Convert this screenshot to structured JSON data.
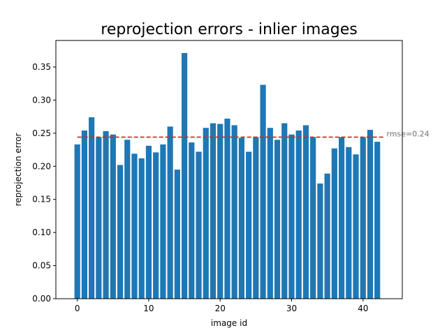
{
  "chart_data": {
    "type": "bar",
    "title": "reprojection errors - inlier images",
    "xlabel": "image id",
    "ylabel": "reprojection error",
    "xlim": [
      -3,
      45.5
    ],
    "ylim": [
      0,
      0.39
    ],
    "xticks": [
      0,
      10,
      20,
      30,
      40
    ],
    "xtick_labels": [
      "0",
      "10",
      "20",
      "30",
      "40"
    ],
    "yticks": [
      0,
      0.05,
      0.1,
      0.15,
      0.2,
      0.25,
      0.3,
      0.35
    ],
    "ytick_labels": [
      "0.00",
      "0.05",
      "0.10",
      "0.15",
      "0.20",
      "0.25",
      "0.30",
      "0.35"
    ],
    "grid": false,
    "bar_color": "#1f77b4",
    "x": [
      0,
      1,
      2,
      3,
      4,
      5,
      6,
      7,
      8,
      9,
      10,
      11,
      12,
      13,
      14,
      15,
      16,
      17,
      18,
      19,
      20,
      21,
      22,
      23,
      24,
      25,
      26,
      27,
      28,
      29,
      30,
      31,
      32,
      33,
      34,
      35,
      36,
      37,
      38,
      39,
      40,
      41,
      42
    ],
    "values": [
      0.233,
      0.254,
      0.274,
      0.244,
      0.253,
      0.248,
      0.202,
      0.24,
      0.219,
      0.212,
      0.231,
      0.221,
      0.233,
      0.26,
      0.195,
      0.371,
      0.236,
      0.222,
      0.258,
      0.265,
      0.264,
      0.272,
      0.262,
      0.243,
      0.222,
      0.244,
      0.323,
      0.258,
      0.24,
      0.265,
      0.248,
      0.254,
      0.262,
      0.244,
      0.174,
      0.189,
      0.227,
      0.244,
      0.229,
      0.218,
      0.244,
      0.255,
      0.237
    ],
    "reference_line": {
      "value": 0.244,
      "x_range": [
        0,
        43
      ],
      "color": "#d62728",
      "style": "dashed",
      "label": "rmse=0.24"
    }
  }
}
